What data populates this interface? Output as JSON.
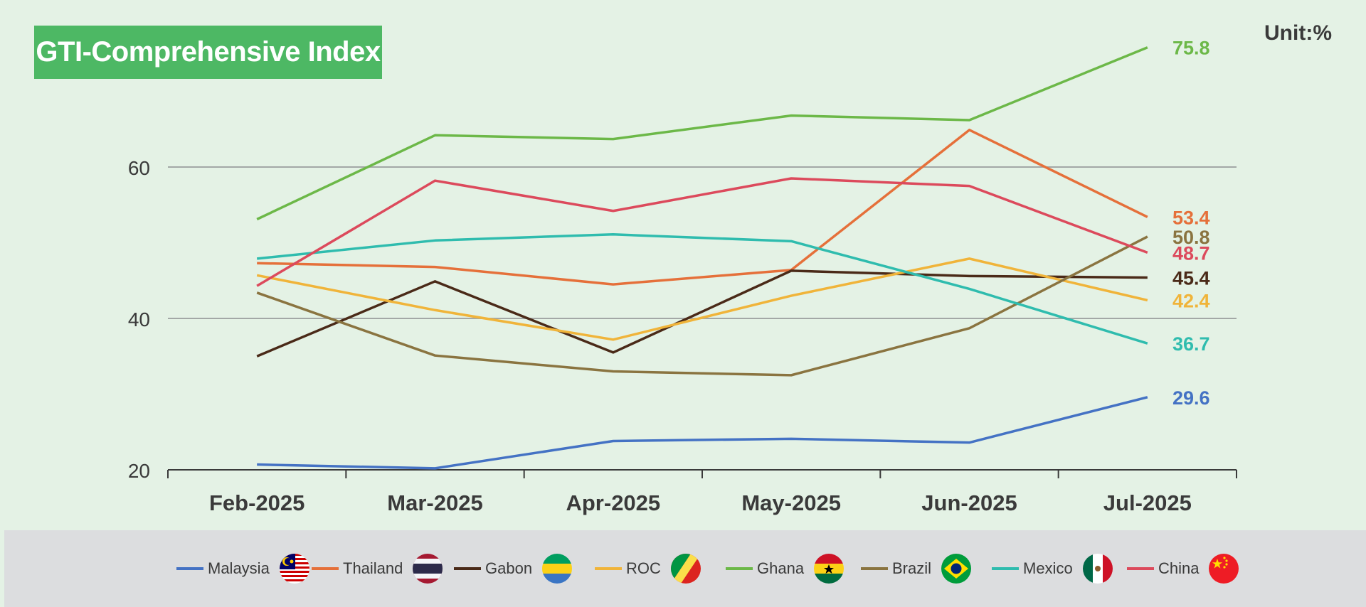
{
  "title": "GTI-Comprehensive Index",
  "unit": "Unit:%",
  "chart_data": {
    "type": "line",
    "title": "GTI-Comprehensive Index",
    "xlabel": "",
    "ylabel": "Unit:%",
    "categories": [
      "Feb-2025",
      "Mar-2025",
      "Apr-2025",
      "May-2025",
      "Jun-2025",
      "Jul-2025"
    ],
    "ylim": [
      20,
      60
    ],
    "yticks": [
      20,
      40,
      60
    ],
    "grid": true,
    "legend": "bottom",
    "series": [
      {
        "name": "Malaysia",
        "color": "#4472c4",
        "values": [
          20.7,
          20.2,
          23.8,
          24.1,
          23.6,
          29.6
        ],
        "end_label": "29.6",
        "flag": "malaysia-flag"
      },
      {
        "name": "Thailand",
        "color": "#e5703a",
        "values": [
          47.3,
          46.8,
          44.5,
          46.4,
          64.9,
          53.4
        ],
        "end_label": "53.4",
        "flag": "thailand-flag"
      },
      {
        "name": "Gabon",
        "color": "#4a2a18",
        "values": [
          35.0,
          44.9,
          35.5,
          46.3,
          45.6,
          45.4
        ],
        "end_label": "45.4",
        "flag": "gabon-flag"
      },
      {
        "name": "ROC",
        "color": "#f0b43a",
        "values": [
          45.7,
          41.1,
          37.2,
          43.0,
          47.9,
          42.4
        ],
        "end_label": "42.4",
        "flag": "roc-flag"
      },
      {
        "name": "Ghana",
        "color": "#6cb848",
        "values": [
          53.1,
          64.2,
          63.7,
          66.8,
          66.2,
          75.8
        ],
        "end_label": "75.8",
        "flag": "ghana-flag"
      },
      {
        "name": "Brazil",
        "color": "#8a7440",
        "values": [
          43.4,
          35.1,
          33.0,
          32.5,
          38.7,
          50.8
        ],
        "end_label": "50.8",
        "flag": "brazil-flag"
      },
      {
        "name": "Mexico",
        "color": "#2fbcae",
        "values": [
          47.9,
          50.3,
          51.1,
          50.2,
          43.9,
          36.7
        ],
        "end_label": "36.7",
        "flag": "mexico-flag"
      },
      {
        "name": "China",
        "color": "#dc4a5c",
        "values": [
          44.3,
          58.2,
          54.2,
          58.5,
          57.5,
          48.7
        ],
        "end_label": "48.7",
        "flag": "china-flag"
      }
    ]
  }
}
